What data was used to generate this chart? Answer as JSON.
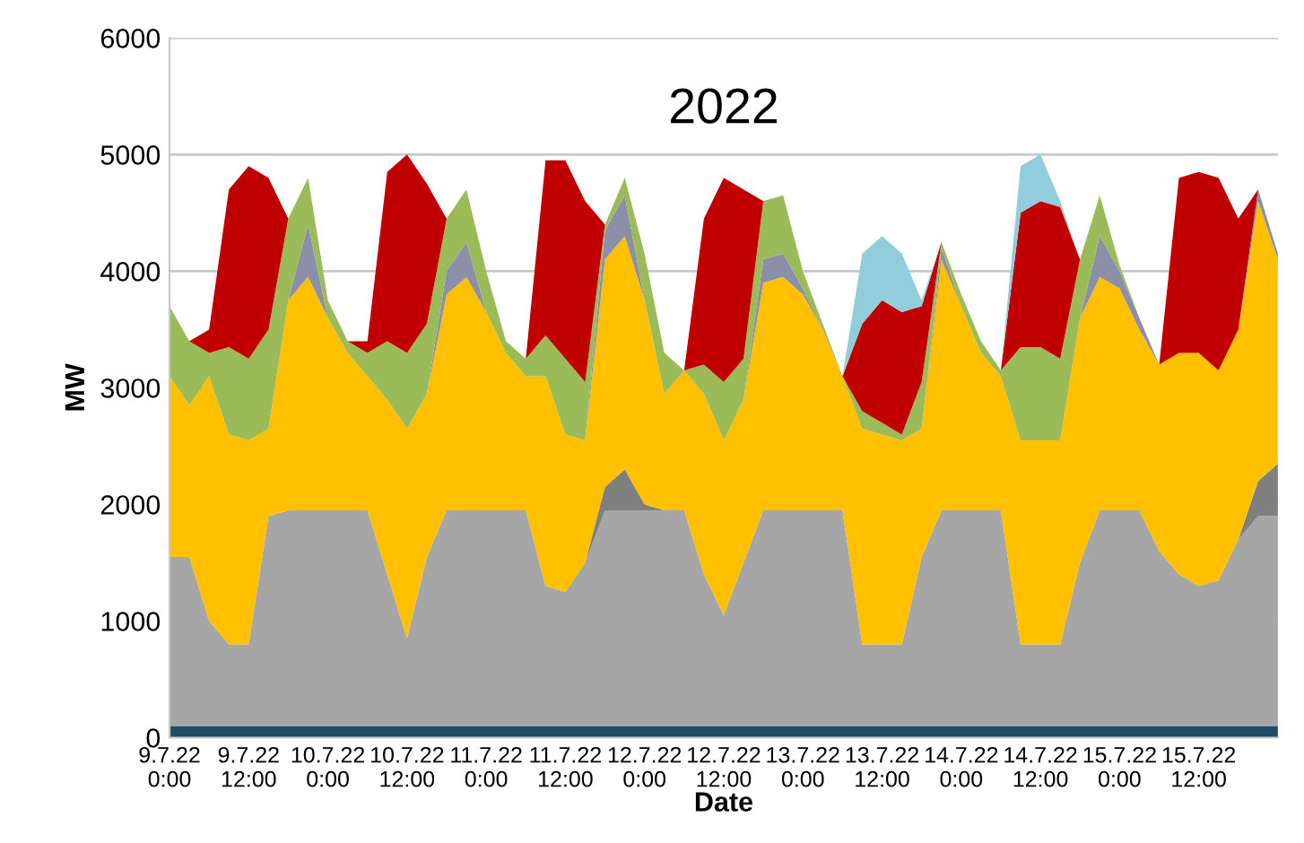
{
  "chart_data": {
    "type": "area",
    "stacked": true,
    "title": "2022",
    "xlabel": "Date",
    "ylabel": "MW",
    "x": [
      "2022-07-09T00:00",
      "2022-07-09T03:00",
      "2022-07-09T06:00",
      "2022-07-09T09:00",
      "2022-07-09T12:00",
      "2022-07-09T15:00",
      "2022-07-09T18:00",
      "2022-07-09T21:00",
      "2022-07-10T00:00",
      "2022-07-10T03:00",
      "2022-07-10T06:00",
      "2022-07-10T09:00",
      "2022-07-10T12:00",
      "2022-07-10T15:00",
      "2022-07-10T18:00",
      "2022-07-10T21:00",
      "2022-07-11T00:00",
      "2022-07-11T03:00",
      "2022-07-11T06:00",
      "2022-07-11T09:00",
      "2022-07-11T12:00",
      "2022-07-11T15:00",
      "2022-07-11T18:00",
      "2022-07-11T21:00",
      "2022-07-12T00:00",
      "2022-07-12T03:00",
      "2022-07-12T06:00",
      "2022-07-12T09:00",
      "2022-07-12T12:00",
      "2022-07-12T15:00",
      "2022-07-12T18:00",
      "2022-07-12T21:00",
      "2022-07-13T00:00",
      "2022-07-13T03:00",
      "2022-07-13T06:00",
      "2022-07-13T09:00",
      "2022-07-13T12:00",
      "2022-07-13T15:00",
      "2022-07-13T18:00",
      "2022-07-13T21:00",
      "2022-07-14T00:00",
      "2022-07-14T03:00",
      "2022-07-14T06:00",
      "2022-07-14T09:00",
      "2022-07-14T12:00",
      "2022-07-14T15:00",
      "2022-07-14T18:00",
      "2022-07-14T21:00",
      "2022-07-15T00:00",
      "2022-07-15T03:00",
      "2022-07-15T06:00",
      "2022-07-15T09:00",
      "2022-07-15T12:00",
      "2022-07-15T15:00",
      "2022-07-15T18:00",
      "2022-07-15T21:00",
      "2022-07-16T00:00"
    ],
    "xlim": [
      "2022-07-09T00:00",
      "2022-07-16T00:00"
    ],
    "xticks": [
      {
        "value": "2022-07-09T00:00",
        "label": "9.7.22\n0:00"
      },
      {
        "value": "2022-07-09T12:00",
        "label": "9.7.22\n12:00"
      },
      {
        "value": "2022-07-10T00:00",
        "label": "10.7.22\n0:00"
      },
      {
        "value": "2022-07-10T12:00",
        "label": "10.7.22\n12:00"
      },
      {
        "value": "2022-07-11T00:00",
        "label": "11.7.22\n0:00"
      },
      {
        "value": "2022-07-11T12:00",
        "label": "11.7.22\n12:00"
      },
      {
        "value": "2022-07-12T00:00",
        "label": "12.7.22\n0:00"
      },
      {
        "value": "2022-07-12T12:00",
        "label": "12.7.22\n12:00"
      },
      {
        "value": "2022-07-13T00:00",
        "label": "13.7.22\n0:00"
      },
      {
        "value": "2022-07-13T12:00",
        "label": "13.7.22\n12:00"
      },
      {
        "value": "2022-07-14T00:00",
        "label": "14.7.22\n0:00"
      },
      {
        "value": "2022-07-14T12:00",
        "label": "14.7.22\n12:00"
      },
      {
        "value": "2022-07-15T00:00",
        "label": "15.7.22\n0:00"
      },
      {
        "value": "2022-07-15T12:00",
        "label": "15.7.22\n12:00"
      }
    ],
    "ylim": [
      0,
      6000
    ],
    "yticks": [
      0,
      1000,
      2000,
      3000,
      4000,
      5000,
      6000
    ],
    "grid": "y",
    "series": [
      {
        "color": "#1f4e64",
        "values": [
          100,
          100,
          100,
          100,
          100,
          100,
          100,
          100,
          100,
          100,
          100,
          100,
          100,
          100,
          100,
          100,
          100,
          100,
          100,
          100,
          100,
          100,
          100,
          100,
          100,
          100,
          100,
          100,
          100,
          100,
          100,
          100,
          100,
          100,
          100,
          100,
          100,
          100,
          100,
          100,
          100,
          100,
          100,
          100,
          100,
          100,
          100,
          100,
          100,
          100,
          100,
          100,
          100,
          100,
          100,
          100,
          100
        ]
      },
      {
        "color": "#a6a6a6",
        "values": [
          1450,
          1450,
          900,
          700,
          700,
          1800,
          1850,
          1850,
          1850,
          1850,
          1850,
          1300,
          750,
          1450,
          1850,
          1850,
          1850,
          1850,
          1850,
          1200,
          1150,
          1400,
          1850,
          1850,
          1850,
          1850,
          1850,
          1300,
          950,
          1400,
          1850,
          1850,
          1850,
          1850,
          1850,
          700,
          700,
          700,
          1450,
          1850,
          1850,
          1850,
          1850,
          700,
          700,
          700,
          1400,
          1850,
          1850,
          1850,
          1500,
          1300,
          1200,
          1250,
          1600,
          1800,
          1800
        ]
      },
      {
        "color": "#7f7f7f",
        "values": [
          0,
          0,
          0,
          0,
          0,
          0,
          0,
          0,
          0,
          0,
          0,
          0,
          0,
          0,
          0,
          0,
          0,
          0,
          0,
          0,
          0,
          0,
          200,
          350,
          50,
          0,
          0,
          0,
          0,
          0,
          0,
          0,
          0,
          0,
          0,
          0,
          0,
          0,
          0,
          0,
          0,
          0,
          0,
          0,
          0,
          0,
          0,
          0,
          0,
          0,
          0,
          0,
          0,
          0,
          0,
          300,
          450
        ]
      },
      {
        "color": "#ffc000",
        "values": [
          1550,
          1300,
          2100,
          1800,
          1750,
          750,
          1800,
          2000,
          1650,
          1350,
          1150,
          1500,
          1800,
          1400,
          1850,
          2000,
          1700,
          1350,
          1150,
          1800,
          1350,
          1050,
          1950,
          2000,
          1750,
          1000,
          1200,
          1550,
          1500,
          1400,
          1950,
          2000,
          1850,
          1550,
          1150,
          1850,
          1800,
          1750,
          1100,
          2150,
          1750,
          1350,
          1150,
          1750,
          1750,
          1750,
          2100,
          2000,
          1900,
          1550,
          1600,
          1900,
          2000,
          1800,
          1800,
          2400,
          1750
        ]
      },
      {
        "color": "#8c8fa8",
        "values": [
          0,
          0,
          0,
          0,
          0,
          0,
          0,
          450,
          0,
          0,
          0,
          0,
          0,
          0,
          200,
          300,
          0,
          0,
          0,
          0,
          0,
          0,
          250,
          350,
          0,
          0,
          0,
          0,
          0,
          0,
          200,
          200,
          50,
          0,
          0,
          0,
          0,
          0,
          0,
          100,
          0,
          0,
          0,
          0,
          0,
          0,
          0,
          350,
          150,
          100,
          0,
          0,
          0,
          0,
          0,
          100,
          50
        ]
      },
      {
        "color": "#9bbb59",
        "values": [
          600,
          550,
          200,
          750,
          700,
          850,
          700,
          400,
          150,
          100,
          200,
          500,
          650,
          600,
          450,
          450,
          350,
          100,
          150,
          350,
          650,
          500,
          50,
          150,
          400,
          350,
          0,
          250,
          500,
          350,
          500,
          500,
          150,
          50,
          0,
          150,
          100,
          50,
          400,
          50,
          100,
          100,
          50,
          800,
          800,
          700,
          500,
          350,
          50,
          0,
          0,
          0,
          0,
          0,
          0,
          0,
          0
        ]
      },
      {
        "color": "#c00000",
        "values": [
          0,
          0,
          200,
          1350,
          1650,
          1300,
          0,
          0,
          0,
          0,
          100,
          1450,
          1700,
          1200,
          0,
          0,
          0,
          0,
          0,
          1500,
          1700,
          1550,
          0,
          0,
          0,
          0,
          0,
          1250,
          1750,
          1450,
          0,
          0,
          0,
          0,
          0,
          750,
          1050,
          1050,
          650,
          0,
          0,
          0,
          0,
          1150,
          1250,
          1300,
          0,
          0,
          0,
          0,
          0,
          1500,
          1550,
          1650,
          950,
          0,
          0
        ]
      },
      {
        "color": "#92cddc",
        "values": [
          0,
          0,
          0,
          0,
          0,
          0,
          0,
          0,
          0,
          0,
          0,
          0,
          0,
          0,
          0,
          0,
          0,
          0,
          0,
          0,
          0,
          0,
          0,
          0,
          0,
          0,
          0,
          0,
          0,
          0,
          0,
          0,
          0,
          0,
          0,
          600,
          550,
          500,
          50,
          0,
          0,
          0,
          0,
          400,
          400,
          50,
          0,
          0,
          0,
          0,
          0,
          0,
          0,
          0,
          0,
          0,
          0
        ]
      }
    ]
  }
}
